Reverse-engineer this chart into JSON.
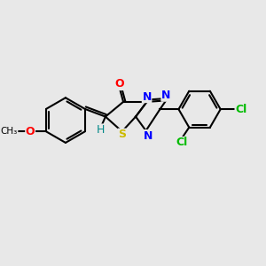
{
  "bg_color": "#e8e8e8",
  "bond_color": "#000000",
  "bond_width": 1.5,
  "atom_labels": {
    "O": {
      "color": "#ff0000",
      "fontsize": 9,
      "fontweight": "bold"
    },
    "N": {
      "color": "#0000ff",
      "fontsize": 9,
      "fontweight": "bold"
    },
    "S": {
      "color": "#ccbb00",
      "fontsize": 9,
      "fontweight": "bold"
    },
    "Cl": {
      "color": "#00bb00",
      "fontsize": 9,
      "fontweight": "bold"
    },
    "H": {
      "color": "#008888",
      "fontsize": 9,
      "fontweight": "normal"
    },
    "methoxy": {
      "color": "#000000",
      "fontsize": 8,
      "fontweight": "normal"
    }
  },
  "figsize": [
    3.0,
    3.0
  ],
  "dpi": 100,
  "xlim": [
    0,
    10
  ],
  "ylim": [
    0,
    10
  ]
}
